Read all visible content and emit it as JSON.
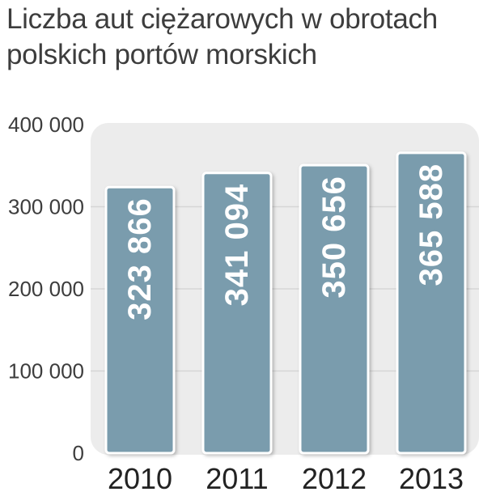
{
  "title": "Liczba aut ciężarowych w obrotach polskich portów morskich",
  "colors": {
    "bar": "#7a9cad",
    "panel": "#ececec",
    "grid": "#d6d6d6",
    "text": "#3d3d3d",
    "value_label": "#ffffff"
  },
  "chart_data": {
    "type": "bar",
    "title": "Liczba aut ciężarowych w obrotach polskich portów morskich",
    "xlabel": "",
    "ylabel": "",
    "categories": [
      "2010",
      "2011",
      "2012",
      "2013"
    ],
    "values": [
      323866,
      341094,
      350656,
      365588
    ],
    "value_labels": [
      "323 866",
      "341 094",
      "350 656",
      "365 588"
    ],
    "ylim": [
      0,
      400000
    ],
    "yticks": [
      0,
      100000,
      200000,
      300000,
      400000
    ],
    "ytick_labels": [
      "0",
      "100 000",
      "200 000",
      "300 000",
      "400 000"
    ],
    "grid": true,
    "legend": "none"
  }
}
